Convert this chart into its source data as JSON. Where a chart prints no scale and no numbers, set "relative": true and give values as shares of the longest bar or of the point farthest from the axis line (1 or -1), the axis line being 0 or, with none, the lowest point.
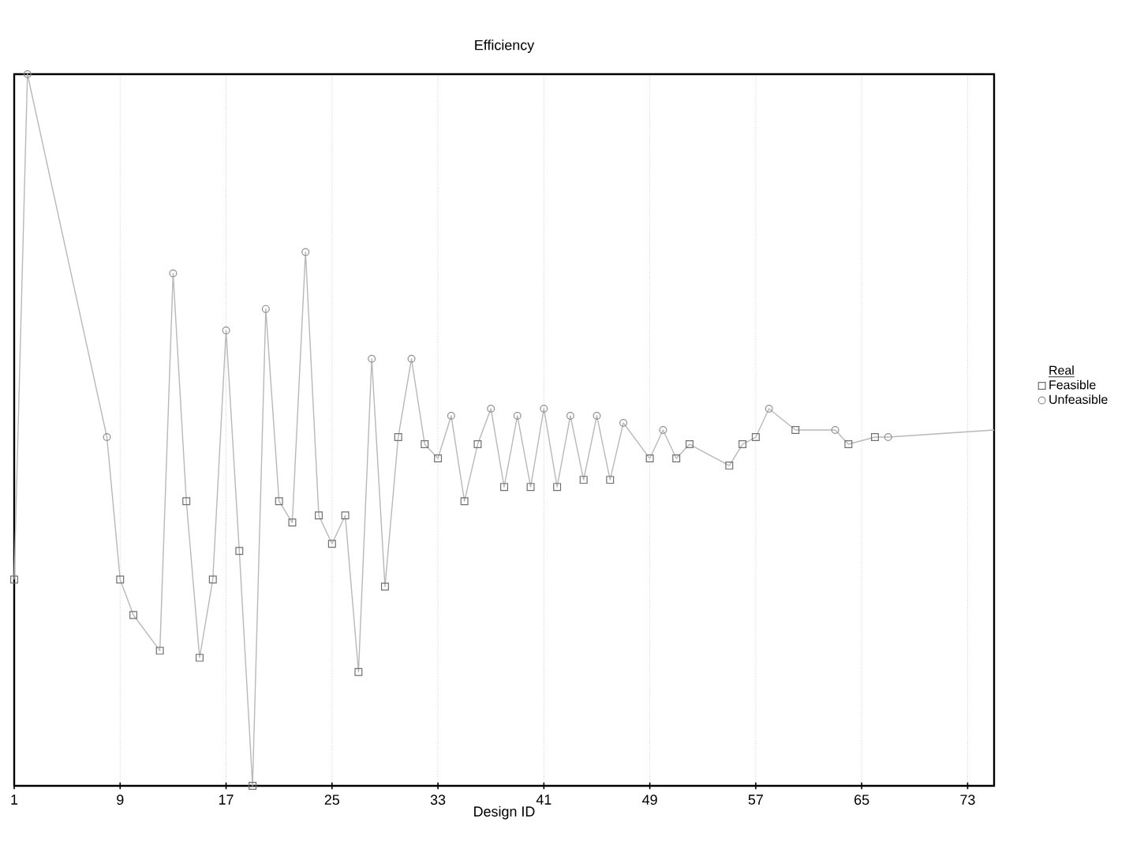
{
  "chart_data": {
    "type": "line",
    "title": "Efficiency",
    "xlabel": "Design ID",
    "legend_title": "Real",
    "relative": true,
    "xlim": [
      1,
      75
    ],
    "xticks": [
      1,
      9,
      17,
      25,
      33,
      41,
      49,
      57,
      65,
      73
    ],
    "grid": "x",
    "legend": "right",
    "series": [
      {
        "color": "#b8b8b8",
        "marker": "none",
        "x": [
          1,
          2,
          8,
          9,
          10,
          12,
          13,
          14,
          15,
          16,
          17,
          18,
          19,
          20,
          21,
          22,
          23,
          24,
          25,
          26,
          27,
          28,
          29,
          30,
          31,
          32,
          33,
          34,
          35,
          36,
          37,
          38,
          39,
          40,
          41,
          42,
          43,
          44,
          45,
          46,
          47,
          49,
          50,
          51,
          52,
          55,
          56,
          57,
          58,
          60,
          63,
          64,
          66,
          67,
          75
        ],
        "values": [
          0.29,
          1,
          0.49,
          0.29,
          0.24,
          0.19,
          0.72,
          0.4,
          0.18,
          0.29,
          0.64,
          0.33,
          0,
          0.67,
          0.4,
          0.37,
          0.75,
          0.38,
          0.34,
          0.38,
          0.16,
          0.6,
          0.28,
          0.49,
          0.6,
          0.48,
          0.46,
          0.52,
          0.4,
          0.48,
          0.53,
          0.42,
          0.52,
          0.42,
          0.53,
          0.42,
          0.52,
          0.43,
          0.52,
          0.43,
          0.51,
          0.46,
          0.5,
          0.46,
          0.48,
          0.45,
          0.48,
          0.49,
          0.53,
          0.5,
          0.5,
          0.48,
          0.49,
          0.49,
          0.5
        ]
      },
      {
        "type": "scatter",
        "name": "Feasible",
        "color": "#707070",
        "marker": "square",
        "x": [
          1,
          9,
          10,
          12,
          14,
          15,
          16,
          18,
          19,
          21,
          22,
          24,
          25,
          26,
          27,
          29,
          30,
          32,
          33,
          35,
          36,
          38,
          40,
          42,
          44,
          46,
          49,
          51,
          52,
          55,
          56,
          57,
          60,
          64,
          66
        ],
        "values": [
          0.29,
          0.29,
          0.24,
          0.19,
          0.4,
          0.18,
          0.29,
          0.33,
          0,
          0.4,
          0.37,
          0.38,
          0.34,
          0.38,
          0.16,
          0.28,
          0.49,
          0.48,
          0.46,
          0.4,
          0.48,
          0.42,
          0.42,
          0.42,
          0.43,
          0.43,
          0.46,
          0.46,
          0.48,
          0.45,
          0.48,
          0.49,
          0.5,
          0.48,
          0.49
        ]
      },
      {
        "type": "scatter",
        "name": "Unfeasible",
        "color": "#909090",
        "marker": "circle",
        "x": [
          2,
          8,
          13,
          17,
          20,
          23,
          28,
          31,
          34,
          37,
          39,
          41,
          43,
          45,
          47,
          50,
          58,
          63,
          67
        ],
        "values": [
          1,
          0.49,
          0.72,
          0.64,
          0.67,
          0.75,
          0.6,
          0.6,
          0.52,
          0.53,
          0.52,
          0.53,
          0.52,
          0.52,
          0.51,
          0.5,
          0.53,
          0.5,
          0.49
        ]
      }
    ]
  }
}
